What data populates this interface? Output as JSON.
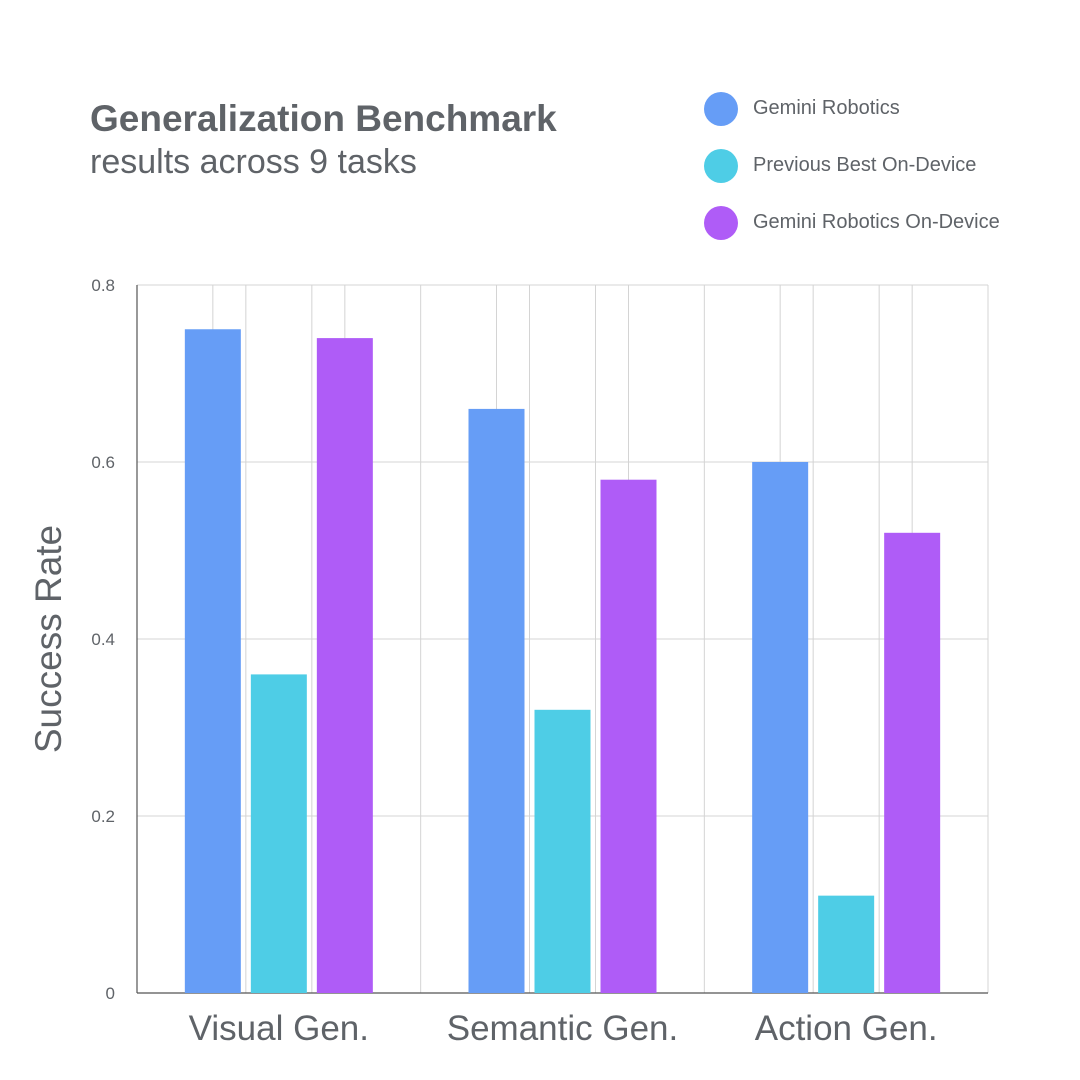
{
  "header": {
    "title": "Generalization Benchmark",
    "subtitle": "results across 9 tasks"
  },
  "legend": [
    {
      "name": "Gemini Robotics",
      "color": "#669df6"
    },
    {
      "name": "Previous Best On-Device",
      "color": "#4ecde6"
    },
    {
      "name": "Gemini Robotics On-Device",
      "color": "#af5cf7"
    }
  ],
  "chart_data": {
    "type": "bar",
    "title": "Generalization Benchmark",
    "subtitle": "results across 9 tasks",
    "xlabel": "",
    "ylabel": "Success Rate",
    "ylim": [
      0,
      0.8
    ],
    "yticks": [
      0,
      0.2,
      0.4,
      0.6,
      0.8
    ],
    "ytick_labels": [
      "0",
      "0.2",
      "0.4",
      "0.6",
      "0.8"
    ],
    "grid": true,
    "legend_position": "top-right",
    "categories": [
      "Visual Gen.",
      "Semantic Gen.",
      "Action Gen."
    ],
    "series": [
      {
        "name": "Gemini Robotics",
        "color": "#669df6",
        "values": [
          0.75,
          0.66,
          0.6
        ]
      },
      {
        "name": "Previous Best On-Device",
        "color": "#4ecde6",
        "values": [
          0.36,
          0.32,
          0.11
        ]
      },
      {
        "name": "Gemini Robotics On-Device",
        "color": "#af5cf7",
        "values": [
          0.74,
          0.58,
          0.52
        ]
      }
    ]
  }
}
